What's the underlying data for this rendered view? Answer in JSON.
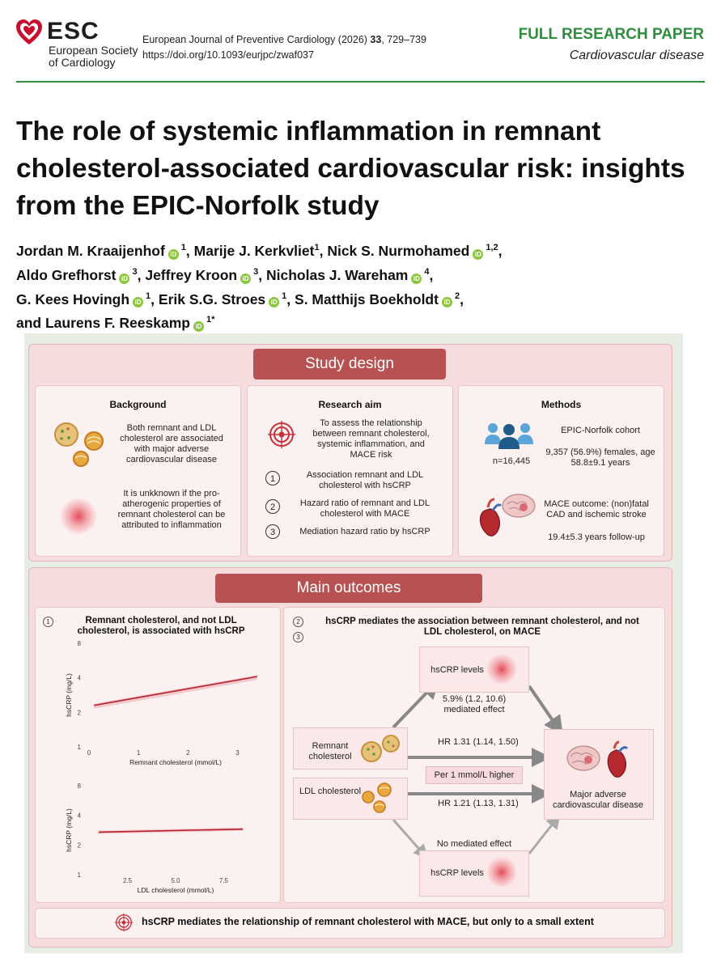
{
  "header": {
    "logo_text": "ESC",
    "org_line1": "European Society",
    "org_line2": "of Cardiology",
    "journal_line": "European Journal of Preventive Cardiology (2026) ",
    "volume": "33",
    "pages": ", 729–739",
    "doi": "https://doi.org/10.1093/eurjpc/zwaf037",
    "article_type": "FULL RESEARCH PAPER",
    "subject": "Cardiovascular disease"
  },
  "title": "The role of systemic inflammation in remnant cholesterol-associated cardiovascular risk: insights from the EPIC-Norfolk study",
  "authors": [
    {
      "name": "Jordan M. Kraaijenhof",
      "orcid": true,
      "aff": "1",
      "sep": ", "
    },
    {
      "name": "Marije J. Kerkvliet",
      "orcid": false,
      "aff": "1",
      "sep": ", "
    },
    {
      "name": "Nick S. Nurmohamed",
      "orcid": true,
      "aff": "1,2",
      "sep": ","
    },
    {
      "name": "Aldo Grefhorst",
      "orcid": true,
      "aff": "3",
      "sep": ", "
    },
    {
      "name": "Jeffrey Kroon",
      "orcid": true,
      "aff": "3",
      "sep": ", "
    },
    {
      "name": "Nicholas J. Wareham",
      "orcid": true,
      "aff": "4",
      "sep": ","
    },
    {
      "name": "G. Kees Hovingh",
      "orcid": true,
      "aff": "1",
      "sep": ", "
    },
    {
      "name": "Erik S.G. Stroes",
      "orcid": true,
      "aff": "1",
      "sep": ", "
    },
    {
      "name": "S. Matthijs Boekholdt",
      "orcid": true,
      "aff": "2",
      "sep": ","
    },
    {
      "name": "and Laurens F. Reeskamp",
      "orcid": true,
      "aff": "1*",
      "sep": ""
    }
  ],
  "orcid_glyph": "iD",
  "graphic": {
    "study_design": "Study design",
    "background": {
      "heading": "Background",
      "text1": "Both remnant and LDL cholesterol are associated with major adverse cardiovascular disease",
      "text2": "It is unkknown if the pro-atherogenic properties of remnant cholesterol can be attributed to inflammation"
    },
    "aim": {
      "heading": "Research aim",
      "text": "To assess the relationship between remnant cholesterol, systemic inflammation, and MACE risk",
      "items": [
        {
          "num": "1",
          "text": "Association remnant and LDL cholesterol with hsCRP"
        },
        {
          "num": "2",
          "text": "Hazard ratio of remnant and LDL cholesterol with MACE"
        },
        {
          "num": "3",
          "text": "Mediation hazard ratio by hsCRP"
        }
      ]
    },
    "methods": {
      "heading": "Methods",
      "cohort": "EPIC-Norfolk cohort",
      "n": "n=16,445",
      "demo": "9,357 (56.9%) females, age 58.8±9.1 years",
      "outcome": "MACE outcome: (non)fatal CAD and ischemic stroke",
      "followup": "19.4±5.3 years follow-up"
    },
    "main_outcomes": "Main outcomes",
    "left": {
      "num": "1",
      "heading": "Remnant cholesterol, and not LDL cholesterol, is associated with hsCRP"
    },
    "right": {
      "num2": "2",
      "num3": "3",
      "heading": "hsCRP mediates the association between remnant cholesterol, and not LDL cholesterol, on MACE",
      "hscrp_top": "hsCRP levels",
      "mediated": "5.9% (1.2, 10.6) mediated effect",
      "remnant": "Remnant cholesterol",
      "hr_remnant": "HR 1.31 (1.14, 1.50)",
      "per_unit": "Per 1 mmol/L higher",
      "ldl": "LDL cholesterol",
      "hr_ldl": "HR 1.21 (1.13, 1.31)",
      "mace": "Major adverse cardiovascular disease",
      "no_mediated": "No mediated effect",
      "hscrp_bottom": "hsCRP levels"
    },
    "conclusion": "hsCRP mediates the relationship of remnant cholesterol with MACE, but only to a small extent"
  },
  "chart_data": [
    {
      "type": "line",
      "xlabel": "Remnant cholesterol (mmol/L)",
      "ylabel": "hsCRP (mg/L)",
      "x_ticks": [
        "0",
        "1",
        "2",
        "3"
      ],
      "y_ticks": [
        "1",
        "2",
        "4",
        "8"
      ],
      "y_scale": "log",
      "series": [
        {
          "x": [
            0.1,
            3.4
          ],
          "y": [
            2.3,
            4.1
          ]
        }
      ]
    },
    {
      "type": "line",
      "xlabel": "LDL cholesterol (mmol/L)",
      "ylabel": "hsCRP (mg/L)",
      "x_ticks": [
        "2.5",
        "5.0",
        "7.5"
      ],
      "y_ticks": [
        "1",
        "2",
        "4",
        "8"
      ],
      "y_scale": "log",
      "series": [
        {
          "x": [
            1.0,
            8.5
          ],
          "y": [
            2.7,
            2.9
          ]
        }
      ]
    }
  ],
  "colors": {
    "accent_green": "#2f8d3e",
    "header_red": "#b85252",
    "line_red": "#b51f2e"
  }
}
